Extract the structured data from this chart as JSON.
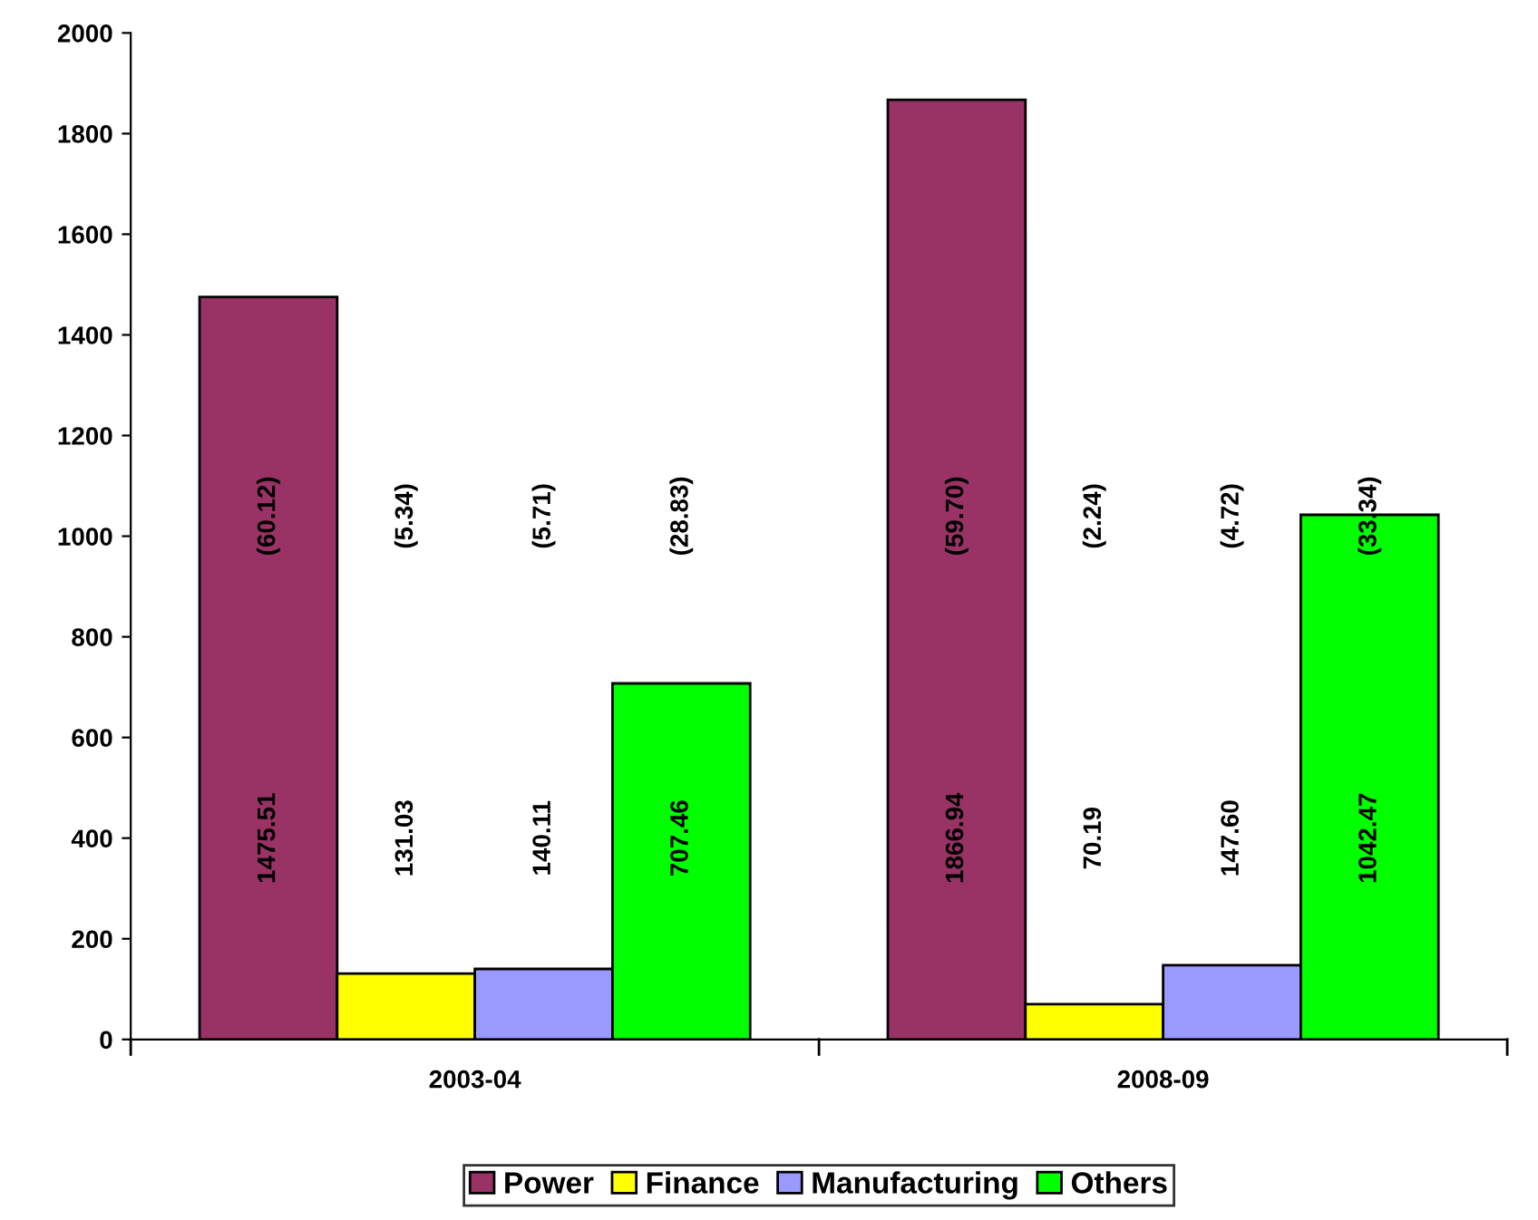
{
  "chart_data": {
    "type": "bar",
    "categories": [
      "2003-04",
      "2008-09"
    ],
    "series": [
      {
        "name": "Power",
        "color": "#993366",
        "values": [
          1475.51,
          1866.94
        ]
      },
      {
        "name": "Finance",
        "color": "#ffff00",
        "values": [
          131.03,
          70.19
        ]
      },
      {
        "name": "Manufacturing",
        "color": "#9999ff",
        "values": [
          140.11,
          147.6
        ]
      },
      {
        "name": "Others",
        "color": "#00ff00",
        "values": [
          707.46,
          1042.47
        ]
      }
    ],
    "value_labels": [
      [
        "1475.51",
        "1866.94"
      ],
      [
        "131.03",
        "70.19"
      ],
      [
        "140.11",
        "147.60"
      ],
      [
        "707.46",
        "1042.47"
      ]
    ],
    "annotations": [
      "(60.12)",
      "(5.34)",
      "(5.71)",
      "(28.83)",
      "(59.70)",
      "(2.24)",
      "(4.72)",
      "(33.34)"
    ],
    "ylim": [
      0,
      2000
    ],
    "yticks": [
      0,
      200,
      400,
      600,
      800,
      1000,
      1200,
      1400,
      1600,
      1800,
      2000
    ],
    "grid": false,
    "legend": "bottom"
  }
}
